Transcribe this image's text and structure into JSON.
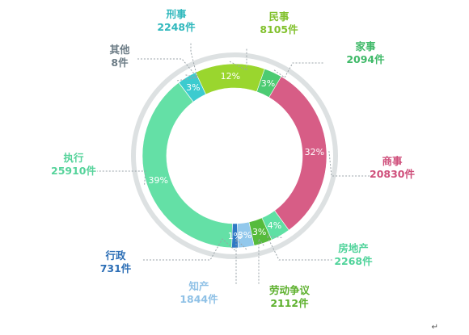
{
  "chart_data": {
    "type": "pie",
    "categories": [
      "民事",
      "家事",
      "商事",
      "房地产",
      "劳动争议",
      "知产",
      "行政",
      "执行",
      "其他",
      "刑事"
    ],
    "values": [
      8105,
      2094,
      20830,
      2268,
      2112,
      1844,
      731,
      25910,
      8,
      2248
    ],
    "value_labels": [
      "8105件",
      "2094件",
      "20830件",
      "2268件",
      "2112件",
      "1844件",
      "731件",
      "25910件",
      "8件",
      "2248件"
    ],
    "percent_labels": [
      "12%",
      "3%",
      "32%",
      "4%",
      "3%",
      "3%",
      "1%",
      "39%",
      "",
      "3%"
    ],
    "colors": [
      "#9ad62e",
      "#4ccb72",
      "#d75d86",
      "#5fe0a4",
      "#56bb3c",
      "#92c8ec",
      "#2e79c4",
      "#64e0a6",
      "#8c8c8c",
      "#3ccbcf"
    ],
    "label_colors": [
      "#82c12d",
      "#3fb968",
      "#cf4f7b",
      "#4fd39a",
      "#5cb02c",
      "#8fc1e6",
      "#2d6fb6",
      "#56d39b",
      "#6b7b85",
      "#2fb8bd"
    ],
    "ring_color": "#dde1e2",
    "legend": "none"
  },
  "corner_mark": "↵"
}
